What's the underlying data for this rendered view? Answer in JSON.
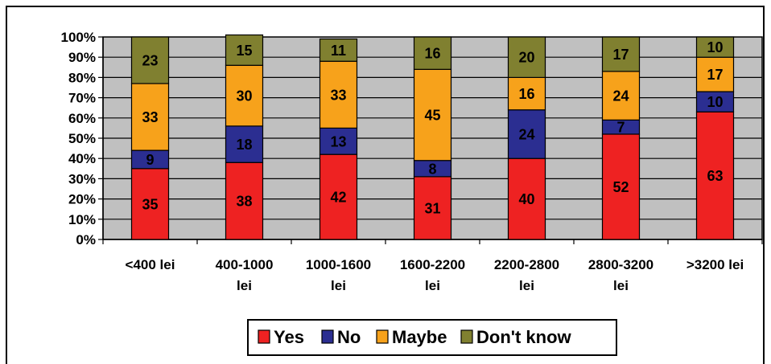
{
  "chart_data": {
    "type": "bar",
    "stacked": true,
    "percent_stacked": true,
    "categories": [
      "<400 lei",
      "400-1000 lei",
      "1000-1600 lei",
      "1600-2200 lei",
      "2200-2800 lei",
      "2800-3200 lei",
      ">3200 lei"
    ],
    "category_lines": [
      [
        "<400 lei"
      ],
      [
        "400-1000",
        "lei"
      ],
      [
        "1000-1600",
        "lei"
      ],
      [
        "1600-2200",
        "lei"
      ],
      [
        "2200-2800",
        "lei"
      ],
      [
        "2800-3200",
        "lei"
      ],
      [
        ">3200 lei"
      ]
    ],
    "series": [
      {
        "name": "Yes",
        "color": "#ee2222",
        "values": [
          35,
          38,
          42,
          31,
          40,
          52,
          63
        ]
      },
      {
        "name": "No",
        "color": "#2b2e91",
        "values": [
          9,
          18,
          13,
          8,
          24,
          7,
          10
        ]
      },
      {
        "name": "Maybe",
        "color": "#f7a21b",
        "values": [
          33,
          30,
          33,
          45,
          16,
          24,
          17
        ]
      },
      {
        "name": "Don't know",
        "color": "#808030",
        "values": [
          23,
          15,
          11,
          16,
          20,
          17,
          10
        ]
      }
    ],
    "y_ticks": [
      "0%",
      "10%",
      "20%",
      "30%",
      "40%",
      "50%",
      "60%",
      "70%",
      "80%",
      "90%",
      "100%"
    ],
    "ylim": [
      0,
      100
    ],
    "grid": true,
    "plot_background": "#c0c0c0",
    "legend_position": "bottom"
  }
}
